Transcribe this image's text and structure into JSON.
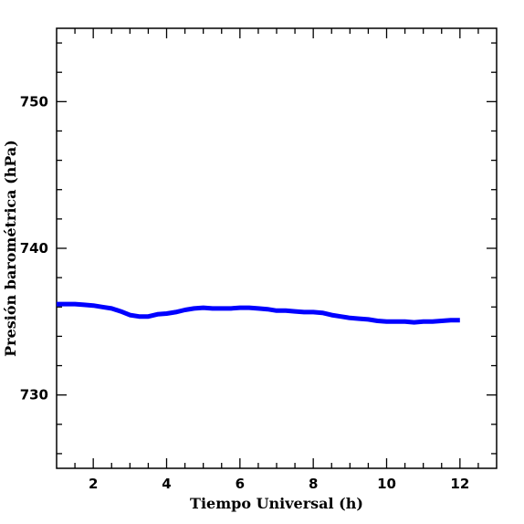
{
  "chart_data": {
    "type": "line",
    "xlabel": "Tiempo Universal (h)",
    "ylabel": "Presión barométrica (hPa)",
    "xlim": [
      1,
      13
    ],
    "ylim": [
      725,
      755
    ],
    "x_major_ticks": [
      2,
      4,
      6,
      8,
      10,
      12
    ],
    "x_tick_labels": [
      "2",
      "4",
      "6",
      "8",
      "10",
      "12"
    ],
    "x_minor_step": 0.5,
    "y_major_ticks": [
      730,
      740,
      750
    ],
    "y_tick_labels": [
      "730",
      "740",
      "750"
    ],
    "y_minor_step": 2,
    "grid": false,
    "series": [
      {
        "color": "#0000ff",
        "x": [
          1.0,
          1.25,
          1.5,
          1.75,
          2.0,
          2.25,
          2.5,
          2.75,
          3.0,
          3.25,
          3.5,
          3.75,
          4.0,
          4.25,
          4.5,
          4.75,
          5.0,
          5.25,
          5.5,
          5.75,
          6.0,
          6.25,
          6.5,
          6.75,
          7.0,
          7.25,
          7.5,
          7.75,
          8.0,
          8.25,
          8.5,
          8.75,
          9.0,
          9.25,
          9.5,
          9.75,
          10.0,
          10.25,
          10.5,
          10.75,
          11.0,
          11.25,
          11.5,
          11.75,
          12.0
        ],
        "y": [
          736.2,
          736.2,
          736.2,
          736.15,
          736.1,
          736.0,
          735.9,
          735.7,
          735.45,
          735.35,
          735.35,
          735.5,
          735.55,
          735.65,
          735.8,
          735.9,
          735.95,
          735.9,
          735.9,
          735.9,
          735.95,
          735.95,
          735.9,
          735.85,
          735.75,
          735.75,
          735.7,
          735.65,
          735.65,
          735.6,
          735.45,
          735.35,
          735.25,
          735.2,
          735.15,
          735.05,
          735.0,
          735.0,
          735.0,
          734.95,
          735.0,
          735.0,
          735.05,
          735.1,
          735.1
        ]
      }
    ]
  }
}
